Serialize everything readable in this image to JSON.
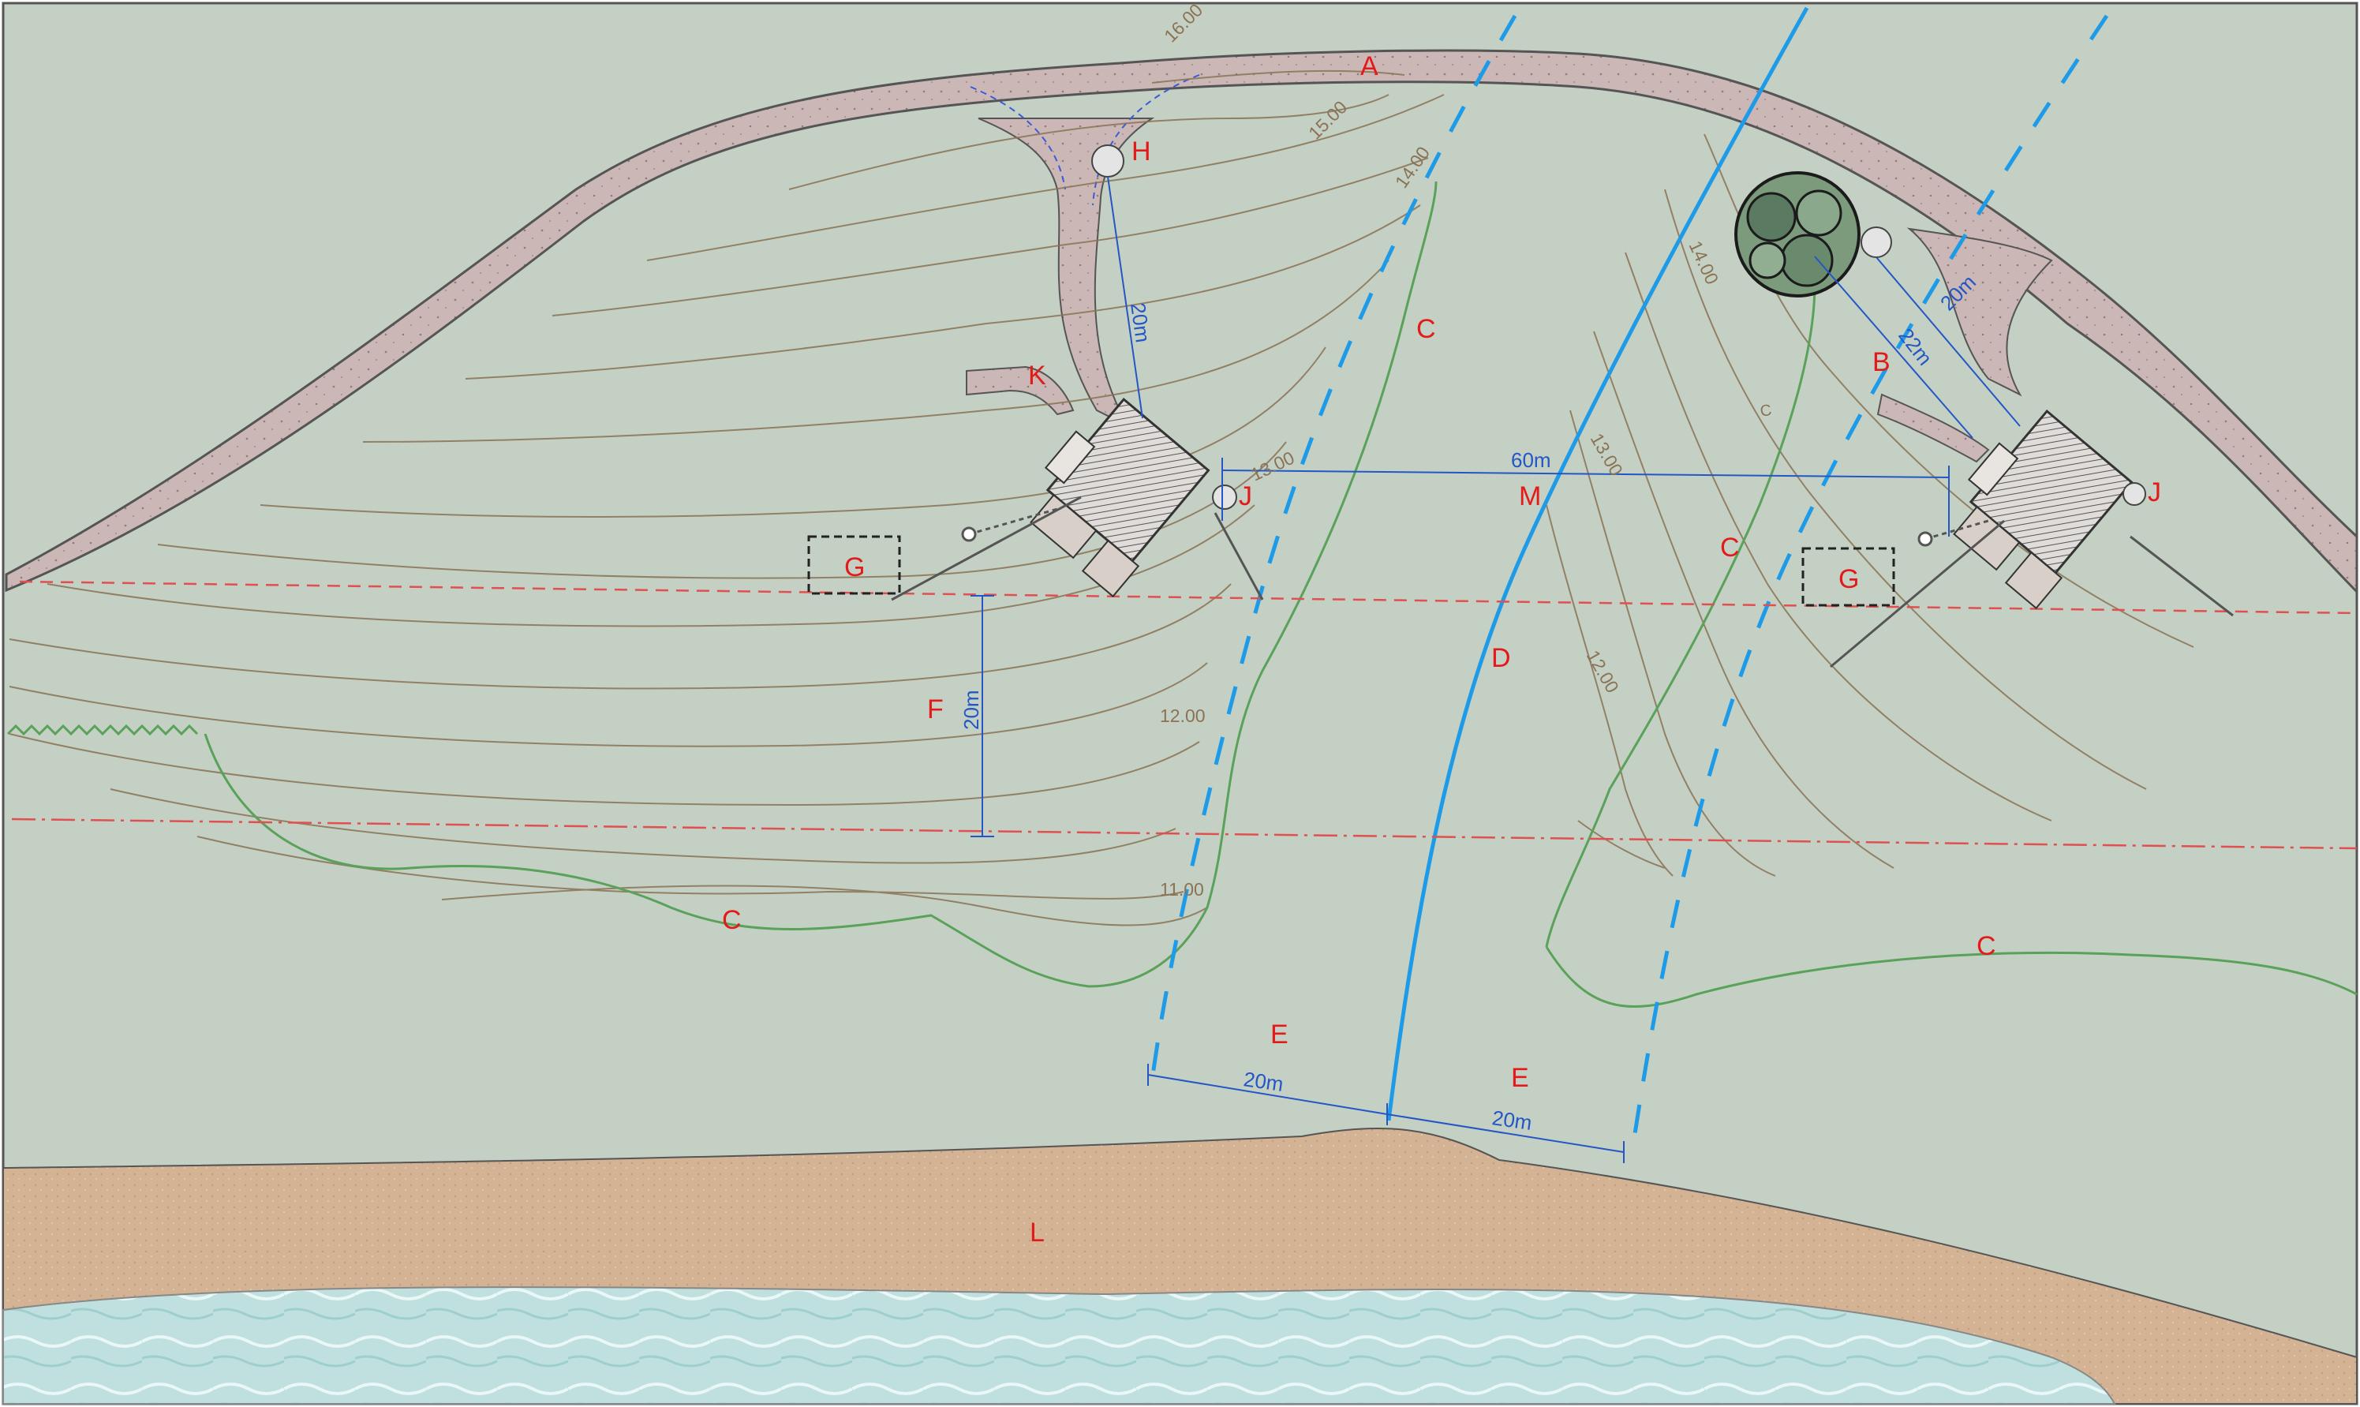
{
  "plan": {
    "labels": {
      "a": "A",
      "b": "B",
      "c1": "C",
      "c2": "C",
      "c3": "C",
      "c4": "C",
      "c5": "C",
      "d": "D",
      "e1": "E",
      "e2": "E",
      "f": "F",
      "g1": "G",
      "g2": "G",
      "h": "H",
      "j1": "J",
      "j2": "J",
      "k": "K",
      "l": "L",
      "m": "M"
    },
    "contours": {
      "c16": "16.00",
      "c15": "15.00",
      "c14": "14.00",
      "c13": "13.00",
      "c12": "12.00",
      "c11": "11.00",
      "c14b": "14.00",
      "c13b": "13.00",
      "c12b": "12.00"
    },
    "dimensions": {
      "well_left": "20m",
      "well_right": "20m",
      "tree_right": "22m",
      "house_spacing": "60m",
      "setback_f": "20m",
      "stream_left": "20m",
      "stream_right": "20m"
    },
    "colors": {
      "background": "#c4d0c4",
      "road": "#cbb8b6",
      "beach": "#d3b394",
      "water": "#bfe0de",
      "labels": "#e31a1a",
      "dimensions": "#2457c5",
      "stream": "#1e9be8",
      "hedge": "#5aa15a",
      "contour": "#8a7355",
      "boundary": "#e05050"
    },
    "icons": {
      "tree": "tree-icon",
      "well": "well-icon",
      "house": "house-icon"
    }
  }
}
